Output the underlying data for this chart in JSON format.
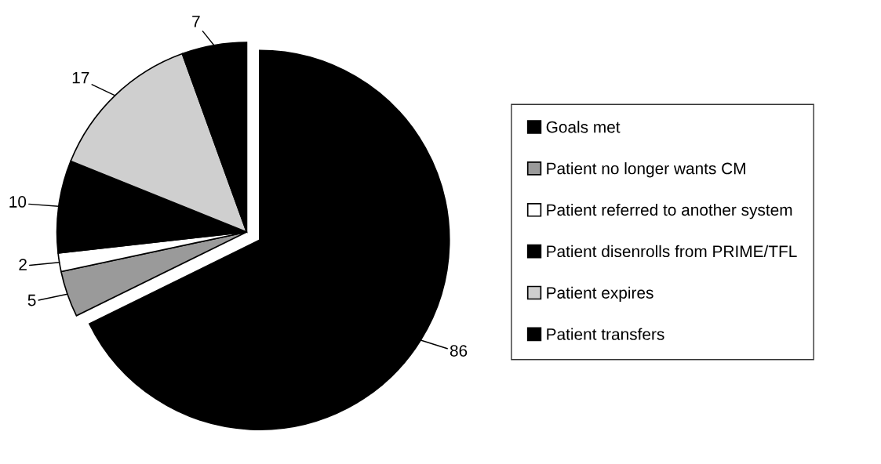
{
  "chart_data": {
    "type": "pie",
    "categories": [
      "Goals met",
      "Patient no longer wants CM",
      "Patient referred to another system",
      "Patient disenrolls from PRIME/TFL",
      "Patient expires",
      "Patient transfers"
    ],
    "values": [
      86,
      5,
      2,
      10,
      17,
      7
    ],
    "colors": [
      "#000000",
      "#9a9a9a",
      "#ffffff",
      "#000000",
      "#cfcfcf",
      "#000000"
    ],
    "data_labels": true,
    "legend": "right"
  }
}
